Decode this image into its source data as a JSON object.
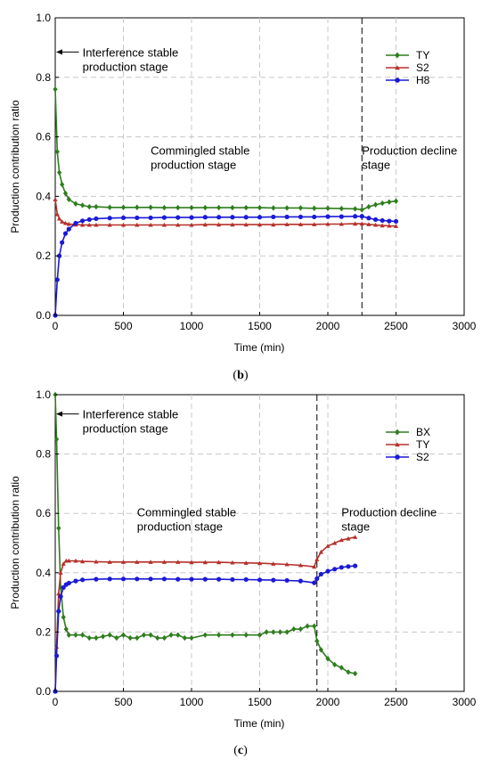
{
  "chart_data": [
    {
      "type": "line",
      "caption_letter": "b",
      "xlabel": "Time (min)",
      "ylabel": "Production contribution ratio",
      "xlim": [
        0,
        3000
      ],
      "ylim": [
        0,
        1.0
      ],
      "x_ticks": [
        "0",
        "500",
        "1000",
        "1500",
        "2000",
        "2500",
        "3000"
      ],
      "y_ticks": [
        "0.0",
        "0.2",
        "0.4",
        "0.6",
        "0.8",
        "1.0"
      ],
      "grid": true,
      "legend_position": "top-right",
      "annotations": [
        {
          "lines": [
            "Interference stable",
            "production stage"
          ],
          "x": 200,
          "y": 0.87
        },
        {
          "lines": [
            "Commingled stable",
            "production stage"
          ],
          "x": 700,
          "y": 0.54
        },
        {
          "lines": [
            "Production decline",
            "stage"
          ],
          "x": 2250,
          "y": 0.54
        }
      ],
      "divider_x": 2250,
      "series": [
        {
          "name": "TY",
          "color": "#2e7d1e",
          "marker": "diamond",
          "x": [
            0,
            15,
            30,
            50,
            75,
            100,
            150,
            200,
            250,
            300,
            400,
            500,
            600,
            700,
            800,
            900,
            1000,
            1100,
            1200,
            1300,
            1400,
            1500,
            1600,
            1700,
            1800,
            1900,
            2000,
            2100,
            2200,
            2250,
            2300,
            2350,
            2400,
            2450,
            2500
          ],
          "y": [
            0.76,
            0.55,
            0.48,
            0.44,
            0.41,
            0.39,
            0.375,
            0.37,
            0.365,
            0.365,
            0.363,
            0.363,
            0.363,
            0.363,
            0.362,
            0.362,
            0.362,
            0.362,
            0.362,
            0.362,
            0.362,
            0.362,
            0.361,
            0.361,
            0.361,
            0.36,
            0.36,
            0.359,
            0.358,
            0.355,
            0.365,
            0.372,
            0.377,
            0.381,
            0.384
          ]
        },
        {
          "name": "S2",
          "color": "#b5302a",
          "marker": "triangle",
          "x": [
            0,
            15,
            30,
            50,
            75,
            100,
            150,
            200,
            250,
            300,
            400,
            500,
            600,
            700,
            800,
            900,
            1000,
            1100,
            1200,
            1300,
            1400,
            1500,
            1600,
            1700,
            1800,
            1900,
            2000,
            2100,
            2200,
            2250,
            2300,
            2350,
            2400,
            2450,
            2500
          ],
          "y": [
            0.39,
            0.34,
            0.325,
            0.315,
            0.31,
            0.307,
            0.305,
            0.304,
            0.304,
            0.304,
            0.304,
            0.304,
            0.304,
            0.304,
            0.304,
            0.304,
            0.304,
            0.305,
            0.305,
            0.305,
            0.305,
            0.305,
            0.305,
            0.306,
            0.306,
            0.306,
            0.307,
            0.307,
            0.308,
            0.308,
            0.306,
            0.304,
            0.302,
            0.301,
            0.3
          ]
        },
        {
          "name": "H8",
          "color": "#1a1ad6",
          "marker": "circle",
          "x": [
            0,
            15,
            30,
            50,
            75,
            100,
            150,
            200,
            250,
            300,
            400,
            500,
            600,
            700,
            800,
            900,
            1000,
            1100,
            1200,
            1300,
            1400,
            1500,
            1600,
            1700,
            1800,
            1900,
            2000,
            2100,
            2200,
            2250,
            2300,
            2350,
            2400,
            2450,
            2500
          ],
          "y": [
            0.0,
            0.12,
            0.2,
            0.245,
            0.275,
            0.29,
            0.31,
            0.318,
            0.322,
            0.325,
            0.327,
            0.328,
            0.328,
            0.328,
            0.329,
            0.329,
            0.329,
            0.33,
            0.33,
            0.33,
            0.33,
            0.33,
            0.331,
            0.331,
            0.331,
            0.331,
            0.332,
            0.332,
            0.333,
            0.333,
            0.327,
            0.322,
            0.319,
            0.317,
            0.316
          ]
        }
      ]
    },
    {
      "type": "line",
      "caption_letter": "c",
      "xlabel": "Time (min)",
      "ylabel": "Production contribution ratio",
      "xlim": [
        0,
        3000
      ],
      "ylim": [
        0,
        1.0
      ],
      "x_ticks": [
        "0",
        "500",
        "1000",
        "1500",
        "2000",
        "2500",
        "3000"
      ],
      "y_ticks": [
        "0.0",
        "0.2",
        "0.4",
        "0.6",
        "0.8",
        "1.0"
      ],
      "grid": true,
      "legend_position": "top-right",
      "annotations": [
        {
          "lines": [
            "Interference stable",
            "production stage"
          ],
          "x": 200,
          "y": 0.92
        },
        {
          "lines": [
            "Commingled stable",
            "production stage"
          ],
          "x": 600,
          "y": 0.59
        },
        {
          "lines": [
            "Production decline",
            "stage"
          ],
          "x": 2100,
          "y": 0.59
        }
      ],
      "divider_x": 1920,
      "series": [
        {
          "name": "BX",
          "color": "#2e7d1e",
          "marker": "diamond",
          "x": [
            0,
            10,
            25,
            40,
            60,
            80,
            100,
            150,
            200,
            250,
            300,
            350,
            400,
            450,
            500,
            550,
            600,
            650,
            700,
            750,
            800,
            850,
            900,
            950,
            1000,
            1100,
            1200,
            1300,
            1400,
            1500,
            1550,
            1600,
            1650,
            1700,
            1750,
            1800,
            1850,
            1900,
            1920,
            1950,
            2000,
            2050,
            2100,
            2150,
            2200
          ],
          "y": [
            1.0,
            0.85,
            0.55,
            0.35,
            0.25,
            0.21,
            0.19,
            0.19,
            0.19,
            0.18,
            0.18,
            0.185,
            0.19,
            0.18,
            0.19,
            0.18,
            0.18,
            0.19,
            0.19,
            0.18,
            0.18,
            0.19,
            0.19,
            0.18,
            0.18,
            0.19,
            0.19,
            0.19,
            0.19,
            0.19,
            0.2,
            0.2,
            0.2,
            0.2,
            0.21,
            0.21,
            0.22,
            0.22,
            0.17,
            0.14,
            0.11,
            0.09,
            0.08,
            0.065,
            0.06
          ]
        },
        {
          "name": "TY",
          "color": "#b5302a",
          "marker": "triangle",
          "x": [
            0,
            10,
            25,
            40,
            60,
            80,
            100,
            150,
            200,
            300,
            400,
            500,
            600,
            700,
            800,
            900,
            1000,
            1100,
            1200,
            1300,
            1400,
            1500,
            1600,
            1700,
            1800,
            1900,
            1920,
            1950,
            2000,
            2050,
            2100,
            2150,
            2200
          ],
          "y": [
            0.0,
            0.15,
            0.33,
            0.4,
            0.43,
            0.44,
            0.44,
            0.44,
            0.438,
            0.437,
            0.436,
            0.436,
            0.436,
            0.436,
            0.436,
            0.436,
            0.435,
            0.435,
            0.435,
            0.434,
            0.433,
            0.432,
            0.43,
            0.428,
            0.425,
            0.42,
            0.445,
            0.47,
            0.49,
            0.5,
            0.51,
            0.515,
            0.52
          ]
        },
        {
          "name": "S2",
          "color": "#1a1ad6",
          "marker": "circle",
          "x": [
            0,
            10,
            25,
            40,
            60,
            80,
            100,
            150,
            200,
            300,
            400,
            500,
            600,
            700,
            800,
            900,
            1000,
            1100,
            1200,
            1300,
            1400,
            1500,
            1600,
            1700,
            1800,
            1900,
            1920,
            1950,
            2000,
            2050,
            2100,
            2150,
            2200
          ],
          "y": [
            0.0,
            0.12,
            0.27,
            0.32,
            0.35,
            0.36,
            0.365,
            0.372,
            0.376,
            0.378,
            0.379,
            0.379,
            0.379,
            0.379,
            0.379,
            0.378,
            0.378,
            0.378,
            0.378,
            0.377,
            0.377,
            0.376,
            0.375,
            0.374,
            0.372,
            0.366,
            0.38,
            0.395,
            0.405,
            0.412,
            0.418,
            0.421,
            0.423
          ]
        }
      ]
    }
  ]
}
